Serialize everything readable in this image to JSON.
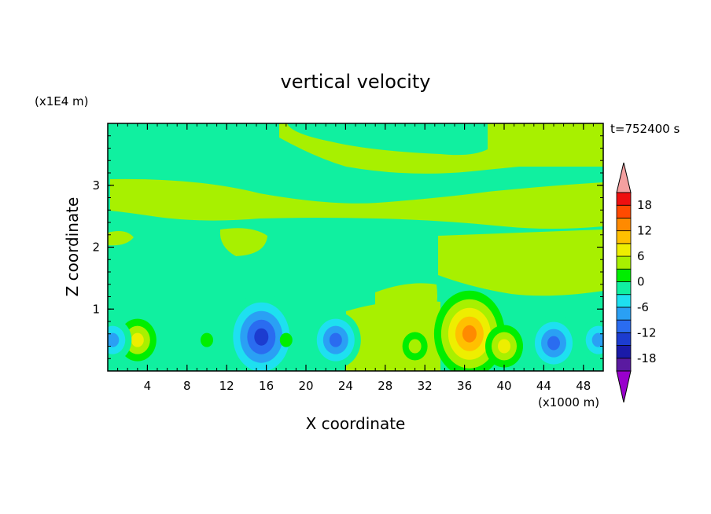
{
  "chart_data": {
    "type": "heatmap",
    "title": "vertical velocity",
    "xlabel": "X coordinate",
    "ylabel": "Z coordinate",
    "x_unit": "(x1000 m)",
    "y_unit": "(x1E4 m)",
    "time_label": "t=752400 s",
    "xlim": [
      0,
      50
    ],
    "ylim": [
      0,
      4
    ],
    "x_ticks": [
      "4",
      "8",
      "12",
      "16",
      "20",
      "24",
      "28",
      "32",
      "36",
      "40",
      "44",
      "48"
    ],
    "y_ticks": [
      "1",
      "2",
      "3"
    ],
    "colorbar": {
      "tick_labels": [
        "18",
        "12",
        "6",
        "0",
        "-6",
        "-12",
        "-18"
      ],
      "levels": [
        -21,
        -18,
        -15,
        -12,
        -9,
        -6,
        -3,
        0,
        3,
        6,
        9,
        12,
        15,
        18,
        21
      ],
      "colors": [
        "#9900cc",
        "#5a1aa0",
        "#1a1aa8",
        "#1c3cd0",
        "#2a6cf0",
        "#2aa0f4",
        "#1ee0f0",
        "#10f0a0",
        "#00ee00",
        "#a8f000",
        "#eeee00",
        "#ffc000",
        "#ff8a00",
        "#ff4a00",
        "#ee1010",
        "#f4a0a0"
      ]
    },
    "features": [
      {
        "x": 36.5,
        "z": 0.6,
        "value": 15
      },
      {
        "x": 40,
        "z": 0.4,
        "value": 10
      },
      {
        "x": 31,
        "z": 0.4,
        "value": 6
      },
      {
        "x": 3,
        "z": 0.5,
        "value": 10
      },
      {
        "x": 15.5,
        "z": 0.55,
        "value": -15
      },
      {
        "x": 23,
        "z": 0.5,
        "value": -12
      },
      {
        "x": 45,
        "z": 0.45,
        "value": -12
      },
      {
        "x": 49.5,
        "z": 0.5,
        "value": -10
      },
      {
        "x": 0.5,
        "z": 0.5,
        "value": -10
      },
      {
        "x": 10,
        "z": 0.5,
        "value": 3
      },
      {
        "x": 18,
        "z": 0.5,
        "value": 3
      }
    ]
  }
}
